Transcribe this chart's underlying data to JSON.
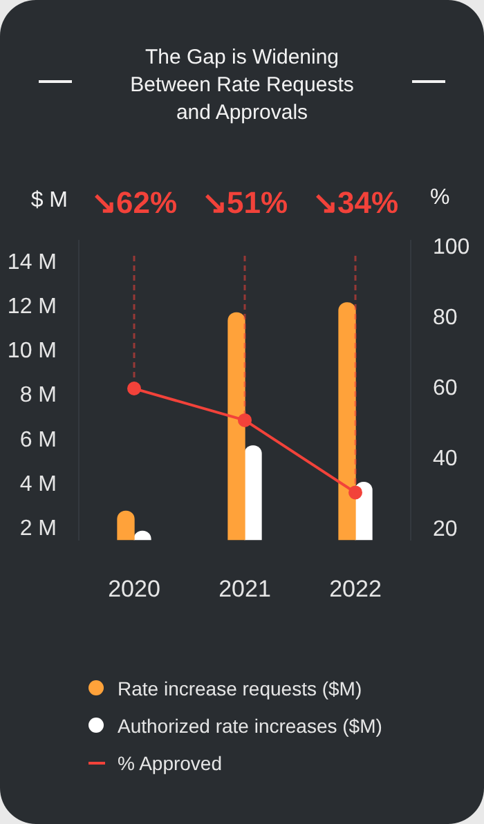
{
  "chart_data": {
    "type": "bar",
    "title": "The Gap is Widening Between Rate Requests and Approvals",
    "ylabel": "$ M",
    "y2label": "%",
    "categories": [
      "2020",
      "2021",
      "2022"
    ],
    "series": [
      {
        "name": "Rate increase requests ($M)",
        "color": "#ffa23a",
        "values": [
          2.8,
          11.75,
          12.2
        ]
      },
      {
        "name": "Authorized rate increases ($M)",
        "color": "#ffffff",
        "values": [
          1.9,
          5.75,
          4.1
        ]
      },
      {
        "name": "% Approved",
        "type": "line",
        "axis": "y2",
        "color": "#f2423a",
        "values": [
          60,
          51,
          30.5
        ]
      }
    ],
    "ylim": [
      1.5,
      15
    ],
    "yticks": [
      {
        "value": 2,
        "label": "2 M"
      },
      {
        "value": 4,
        "label": "4 M"
      },
      {
        "value": 6,
        "label": "6 M"
      },
      {
        "value": 8,
        "label": "8 M"
      },
      {
        "value": 10,
        "label": "10 M"
      },
      {
        "value": 12,
        "label": "12 M"
      },
      {
        "value": 14,
        "label": "14 M"
      }
    ],
    "y2lim": [
      17,
      102
    ],
    "y2ticks": [
      20,
      40,
      60,
      80,
      100
    ],
    "annotations": [
      {
        "text": "↘62%",
        "x": "2020"
      },
      {
        "text": "↘51%",
        "x": "2021"
      },
      {
        "text": "↘34%",
        "x": "2022"
      }
    ],
    "marker": "circle",
    "legend": "bottom"
  }
}
